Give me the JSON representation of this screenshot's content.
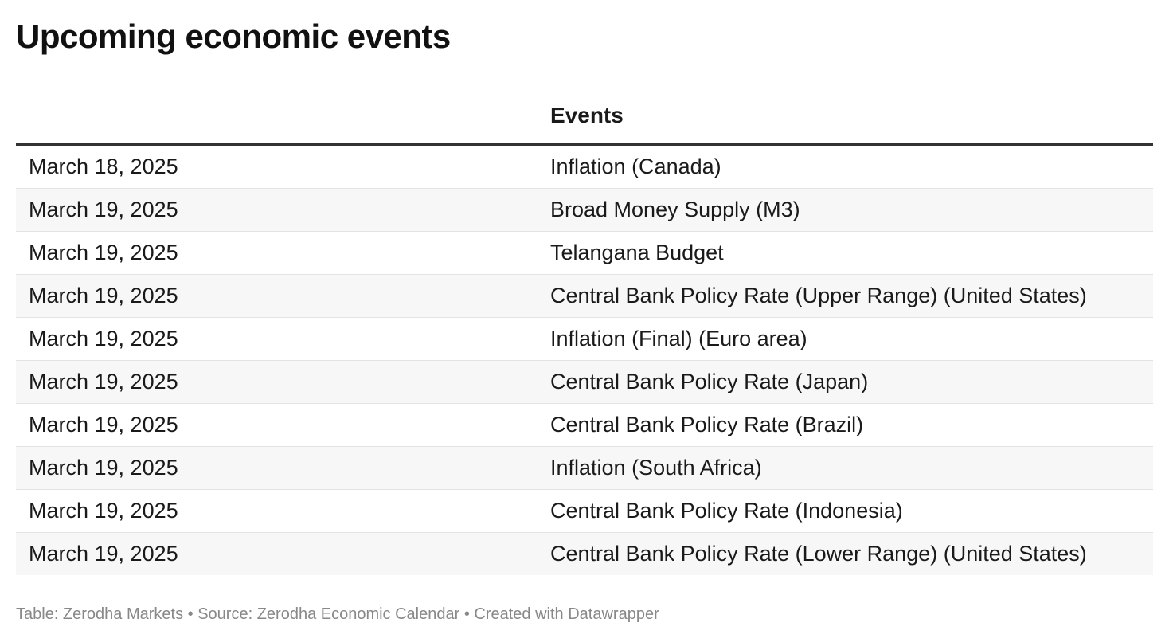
{
  "title": "Upcoming economic events",
  "table": {
    "headers": [
      "",
      "Events"
    ],
    "rows": [
      {
        "date": "March 18, 2025",
        "event": "Inflation (Canada)"
      },
      {
        "date": "March 19, 2025",
        "event": "Broad Money Supply (M3)"
      },
      {
        "date": "March 19, 2025",
        "event": "Telangana Budget"
      },
      {
        "date": "March 19, 2025",
        "event": "Central Bank Policy Rate (Upper Range) (United States)"
      },
      {
        "date": "March 19, 2025",
        "event": "Inflation (Final) (Euro area)"
      },
      {
        "date": "March 19, 2025",
        "event": "Central Bank Policy Rate (Japan)"
      },
      {
        "date": "March 19, 2025",
        "event": "Central Bank Policy Rate (Brazil)"
      },
      {
        "date": "March 19, 2025",
        "event": "Inflation (South Africa)"
      },
      {
        "date": "March 19, 2025",
        "event": "Central Bank Policy Rate (Indonesia)"
      },
      {
        "date": "March 19, 2025",
        "event": "Central Bank Policy Rate (Lower Range) (United States)"
      }
    ]
  },
  "footer": "Table: Zerodha Markets • Source: Zerodha Economic Calendar • Created with Datawrapper"
}
